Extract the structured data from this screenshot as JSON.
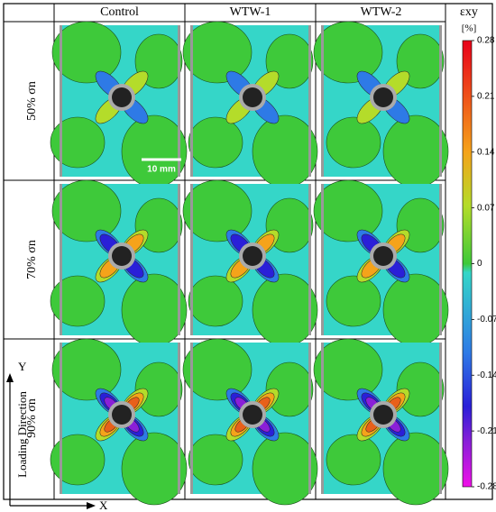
{
  "columns": [
    "Control",
    "WTW-1",
    "WTW-2"
  ],
  "rows": [
    "50% σn",
    "70% σn",
    "90% σn"
  ],
  "colorbar": {
    "title": "εxy",
    "unit": "[%]",
    "lim": [
      -0.28,
      0.28
    ],
    "ticks": [
      0.28,
      0.21,
      0.14,
      0.07,
      0,
      -0.07,
      -0.14,
      -0.21,
      -0.28
    ]
  },
  "scale_bar": "10 mm",
  "axes": {
    "y": "Y",
    "x": "X",
    "direction": "Loading Direction"
  }
}
